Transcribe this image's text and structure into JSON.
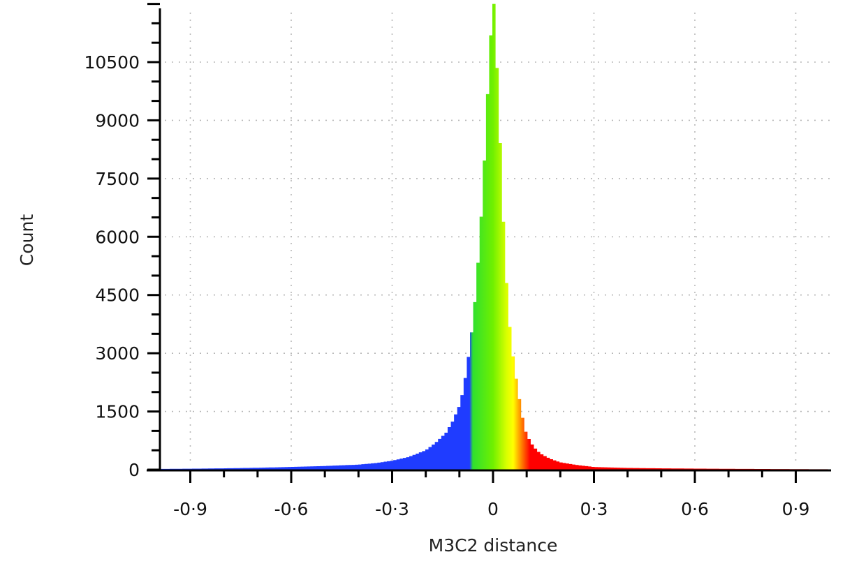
{
  "chart_data": {
    "type": "bar",
    "subtype": "histogram",
    "title": "",
    "xlabel": "M3C2 distance",
    "ylabel": "Count",
    "xlim": [
      -0.99,
      1.0
    ],
    "ylim": [
      0,
      12000
    ],
    "grid": true,
    "grid_style": "dotted",
    "legend": null,
    "x_ticks": [
      -0.9,
      -0.6,
      -0.3,
      0,
      0.3,
      0.6,
      0.9
    ],
    "x_tick_labels": [
      "-0·9",
      "-0·6",
      "-0·3",
      "0",
      "0·3",
      "0·6",
      "0·9"
    ],
    "y_ticks": [
      0,
      1500,
      3000,
      4500,
      6000,
      7500,
      9000,
      10500
    ],
    "y_tick_labels": [
      "0",
      "1500",
      "3000",
      "4500",
      "6000",
      "7500",
      "9000",
      "10500"
    ],
    "color_scale": {
      "description": "Blue-Green-Yellow-Red colour ramp mapped to M3C2 distance",
      "stops": [
        {
          "x": -0.99,
          "color": "#1f3cff"
        },
        {
          "x": -0.07,
          "color": "#1f3cff"
        },
        {
          "x": -0.06,
          "color": "#2fe02f"
        },
        {
          "x": 0.0,
          "color": "#70f000"
        },
        {
          "x": 0.04,
          "color": "#d8ff00"
        },
        {
          "x": 0.06,
          "color": "#ffff00"
        },
        {
          "x": 0.08,
          "color": "#ff9900"
        },
        {
          "x": 0.11,
          "color": "#ff0000"
        },
        {
          "x": 1.0,
          "color": "#ff0000"
        }
      ]
    },
    "bins_profile": {
      "x": [
        -0.99,
        -0.9,
        -0.8,
        -0.7,
        -0.6,
        -0.5,
        -0.4,
        -0.35,
        -0.3,
        -0.25,
        -0.2,
        -0.17,
        -0.14,
        -0.12,
        -0.1,
        -0.09,
        -0.08,
        -0.07,
        -0.06,
        -0.05,
        -0.04,
        -0.03,
        -0.02,
        -0.01,
        0.0,
        0.005,
        0.01,
        0.02,
        0.03,
        0.04,
        0.05,
        0.06,
        0.07,
        0.08,
        0.09,
        0.1,
        0.12,
        0.14,
        0.17,
        0.2,
        0.25,
        0.3,
        0.4,
        0.5,
        0.6,
        0.7,
        0.8,
        0.9,
        1.0
      ],
      "counts": [
        20,
        25,
        35,
        50,
        70,
        95,
        130,
        170,
        230,
        330,
        500,
        700,
        950,
        1250,
        1650,
        2000,
        2500,
        3100,
        3800,
        4700,
        5900,
        7200,
        9000,
        10800,
        12000,
        12000,
        10800,
        8800,
        6600,
        4900,
        3700,
        2900,
        2300,
        1750,
        1250,
        900,
        600,
        420,
        280,
        190,
        120,
        70,
        45,
        35,
        28,
        22,
        18,
        14,
        10
      ]
    },
    "peak": {
      "x": 0.0,
      "count": 12000
    }
  }
}
